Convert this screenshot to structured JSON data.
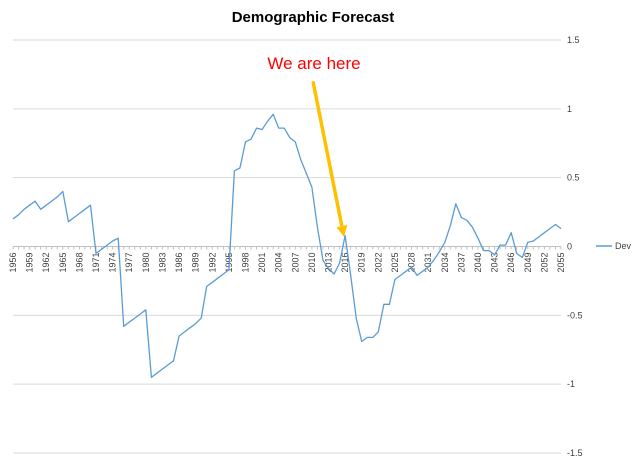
{
  "chart_data": {
    "type": "line",
    "title": "Demographic Forecast",
    "xlabel": "",
    "ylabel": "",
    "ylim": [
      -1.5,
      1.5
    ],
    "y_ticks": [
      "1.5",
      "1",
      "0.5",
      "0",
      "-0.5",
      "-1",
      "-1.5"
    ],
    "x_tick_labels": [
      "1956",
      "1959",
      "1962",
      "1965",
      "1968",
      "1971",
      "1974",
      "1977",
      "1980",
      "1983",
      "1986",
      "1989",
      "1992",
      "1995",
      "1998",
      "2001",
      "2004",
      "2007",
      "2010",
      "2013",
      "2016",
      "2019",
      "2022",
      "2025",
      "2028",
      "2031",
      "2034",
      "2037",
      "2040",
      "2043",
      "2046",
      "2049",
      "2052",
      "2055"
    ],
    "grid": "horizontal",
    "legend": "right",
    "colors": {
      "series": "#5b9bd5",
      "arrow": "#ffc000",
      "annotation": "#ff0000"
    },
    "series": [
      {
        "name": "Dev",
        "x": [
          1956,
          1957,
          1958,
          1959,
          1960,
          1961,
          1962,
          1963,
          1964,
          1965,
          1966,
          1967,
          1968,
          1969,
          1970,
          1971,
          1972,
          1973,
          1974,
          1975,
          1976,
          1977,
          1978,
          1979,
          1980,
          1981,
          1982,
          1983,
          1984,
          1985,
          1986,
          1987,
          1988,
          1989,
          1990,
          1991,
          1992,
          1993,
          1994,
          1995,
          1996,
          1997,
          1998,
          1999,
          2000,
          2001,
          2002,
          2003,
          2004,
          2005,
          2006,
          2007,
          2008,
          2009,
          2010,
          2011,
          2012,
          2013,
          2014,
          2015,
          2016,
          2017,
          2018,
          2019,
          2020,
          2021,
          2022,
          2023,
          2024,
          2025,
          2026,
          2027,
          2028,
          2029,
          2030,
          2031,
          2032,
          2033,
          2034,
          2035,
          2036,
          2037,
          2038,
          2039,
          2040,
          2041,
          2042,
          2043,
          2044,
          2045,
          2046,
          2047,
          2048,
          2049,
          2050,
          2051,
          2052,
          2053,
          2054,
          2055
        ],
        "values": [
          0.2,
          0.23,
          0.27,
          0.3,
          0.33,
          0.27,
          0.3,
          0.33,
          0.36,
          0.4,
          0.18,
          0.21,
          0.24,
          0.27,
          0.3,
          -0.05,
          -0.02,
          0.01,
          0.04,
          0.06,
          -0.58,
          -0.55,
          -0.52,
          -0.49,
          -0.46,
          -0.95,
          -0.92,
          -0.89,
          -0.86,
          -0.83,
          -0.65,
          -0.62,
          -0.59,
          -0.56,
          -0.52,
          -0.29,
          -0.26,
          -0.23,
          -0.2,
          -0.17,
          0.55,
          0.57,
          0.76,
          0.78,
          0.86,
          0.85,
          0.91,
          0.96,
          0.86,
          0.86,
          0.79,
          0.76,
          0.63,
          0.53,
          0.43,
          0.14,
          -0.1,
          -0.16,
          -0.2,
          -0.12,
          0.08,
          -0.21,
          -0.52,
          -0.69,
          -0.66,
          -0.66,
          -0.62,
          -0.42,
          -0.42,
          -0.24,
          -0.21,
          -0.18,
          -0.15,
          -0.21,
          -0.18,
          -0.15,
          -0.1,
          -0.04,
          0.03,
          0.15,
          0.31,
          0.21,
          0.19,
          0.14,
          0.06,
          -0.03,
          -0.03,
          -0.06,
          0.01,
          0.01,
          0.1,
          -0.05,
          -0.08,
          0.03,
          0.04,
          0.07,
          0.1,
          0.13,
          0.16,
          0.13
        ]
      }
    ],
    "annotations": [
      {
        "text": "We are here",
        "arrow_from": [
          2010.2,
          1.2
        ],
        "arrow_to": [
          2015.8,
          0.07
        ]
      }
    ]
  }
}
